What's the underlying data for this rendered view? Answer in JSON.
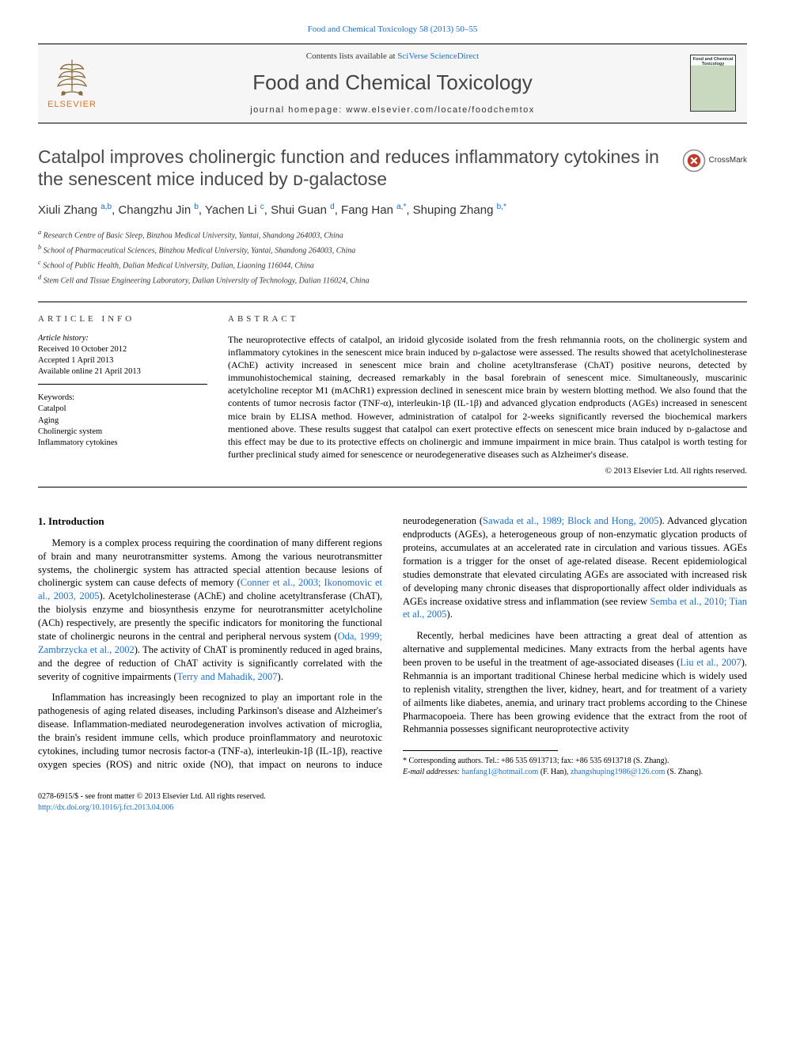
{
  "top_link": "Food and Chemical Toxicology 58 (2013) 50–55",
  "masthead": {
    "contents_prefix": "Contents lists available at ",
    "contents_link": "SciVerse ScienceDirect",
    "journal_title": "Food and Chemical Toxicology",
    "homepage_prefix": "journal homepage: ",
    "homepage_url": "www.elsevier.com/locate/foodchemtox",
    "publisher_name": "ELSEVIER",
    "cover_text_top": "Food and Chemical Toxicology"
  },
  "colors": {
    "link": "#1a6fc9",
    "elsevier_orange": "#e9711c",
    "body_text": "#000000",
    "heading_grey": "#4a4a4a",
    "background": "#ffffff",
    "masthead_bg": "#f6f6f6"
  },
  "crossmark_label": "CrossMark",
  "paper": {
    "title": "Catalpol improves cholinergic function and reduces inflammatory cytokines in the senescent mice induced by ᴅ-galactose",
    "authors_html": "Xiuli Zhang <sup>a,b</sup>, Changzhu Jin <sup>b</sup>, Yachen Li <sup>c</sup>, Shui Guan <sup>d</sup>, Fang Han <sup>a,*</sup>, Shuping Zhang <sup>b,*</sup>",
    "affiliations": [
      "a Research Centre of Basic Sleep, Binzhou Medical University, Yantai, Shandong 264003, China",
      "b School of Pharmaceutical Sciences, Binzhou Medical University, Yantai, Shandong 264003, China",
      "c School of Public Health, Dalian Medical University, Dalian, Liaoning 116044, China",
      "d Stem Cell and Tissue Engineering Laboratory, Dalian University of Technology, Dalian 116024, China"
    ]
  },
  "article_info": {
    "heading": "ARTICLE INFO",
    "history_label": "Article history:",
    "history": [
      "Received 10 October 2012",
      "Accepted 1 April 2013",
      "Available online 21 April 2013"
    ],
    "keywords_label": "Keywords:",
    "keywords": [
      "Catalpol",
      "Aging",
      "Cholinergic system",
      "Inflammatory cytokines"
    ]
  },
  "abstract": {
    "heading": "ABSTRACT",
    "text": "The neuroprotective effects of catalpol, an iridoid glycoside isolated from the fresh rehmannia roots, on the cholinergic system and inflammatory cytokines in the senescent mice brain induced by ᴅ-galactose were assessed. The results showed that acetylcholinesterase (AChE) activity increased in senescent mice brain and choline acetyltransferase (ChAT) positive neurons, detected by immunohistochemical staining, decreased remarkably in the basal forebrain of senescent mice. Simultaneously, muscarinic acetylcholine receptor M1 (mAChR1) expression declined in senescent mice brain by western blotting method. We also found that the contents of tumor necrosis factor (TNF-α), interleukin-1β (IL-1β) and advanced glycation endproducts (AGEs) increased in senescent mice brain by ELISA method. However, administration of catalpol for 2-weeks significantly reversed the biochemical markers mentioned above. These results suggest that catalpol can exert protective effects on senescent mice brain induced by ᴅ-galactose and this effect may be due to its protective effects on cholinergic and immune impairment in mice brain. Thus catalpol is worth testing for further preclinical study aimed for senescence or neurodegenerative diseases such as Alzheimer's disease.",
    "copyright": "© 2013 Elsevier Ltd. All rights reserved."
  },
  "body": {
    "section_heading": "1. Introduction",
    "p1": "Memory is a complex process requiring the coordination of many different regions of brain and many neurotransmitter systems. Among the various neurotransmitter systems, the cholinergic system has attracted special attention because lesions of cholinergic system can cause defects of memory (",
    "p1_ref": "Conner et al., 2003; Ikonomovic et al., 2003, 2005",
    "p1b": "). Acetylcholinesterase (AChE) and choline acetyltransferase (ChAT), the biolysis enzyme and biosynthesis enzyme for neurotransmitter acetylcholine (ACh) respectively, are presently the specific indicators for monitoring the functional state of cholinergic neurons in the central and peripheral nervous system (",
    "p1_ref2": "Oda, 1999; Zambrzycka et al., 2002",
    "p1c": "). The activity of ChAT is prominently reduced in aged brains, and the degree of reduction of ChAT activity is significantly correlated with the severity of cognitive impairments (",
    "p1_ref3": "Terry and Mahadik, 2007",
    "p1d": ").",
    "p2": "Inflammation has increasingly been recognized to play an important role in the pathogenesis of aging related diseases, including Parkinson's disease and Alzheimer's disease. Inflammation-mediated neurodegeneration involves activation of microglia, the brain's resident immune cells, which produce proinflammatory and neurotoxic cytokines, including tumor necrosis factor-a (TNF-a), interleukin-1β (IL-1β), reactive oxygen species (ROS) and nitric oxide (NO), that impact on neurons to induce neurodegeneration (",
    "p2_ref": "Sawada et al., 1989; Block and Hong, 2005",
    "p2b": "). Advanced glycation endproducts (AGEs), a heterogeneous group of non-enzymatic glycation products of proteins, accumulates at an accelerated rate in circulation and various tissues. AGEs formation is a trigger for the onset of age-related disease. Recent epidemiological studies demonstrate that elevated circulating AGEs are associated with increased risk of developing many chronic diseases that disproportionally affect older individuals as AGEs increase oxidative stress and inflammation (see review ",
    "p2_ref2": "Semba et al., 2010; Tian et al., 2005",
    "p2c": ").",
    "p3": "Recently, herbal medicines have been attracting a great deal of attention as alternative and supplemental medicines. Many extracts from the herbal agents have been proven to be useful in the treatment of age-associated diseases (",
    "p3_ref": "Liu et al., 2007",
    "p3b": "). Rehmannia is an important traditional Chinese herbal medicine which is widely used to replenish vitality, strengthen the liver, kidney, heart, and for treatment of a variety of ailments like diabetes, anemia, and urinary tract problems according to the Chinese Pharmacopoeia. There has been growing evidence that the extract from the root of Rehmannia possesses significant neuroprotective activity"
  },
  "corresponding": {
    "note": "* Corresponding authors. Tel.: +86 535 6913713; fax: +86 535 6913718 (S. Zhang).",
    "emails_label": "E-mail addresses: ",
    "email1": "hanfang1@hotmail.com",
    "email1_who": " (F. Han), ",
    "email2": "zhangshuping1986@126.com",
    "email2_who": " (S. Zhang)."
  },
  "footer": {
    "line1": "0278-6915/$ - see front matter © 2013 Elsevier Ltd. All rights reserved.",
    "doi": "http://dx.doi.org/10.1016/j.fct.2013.04.006"
  }
}
